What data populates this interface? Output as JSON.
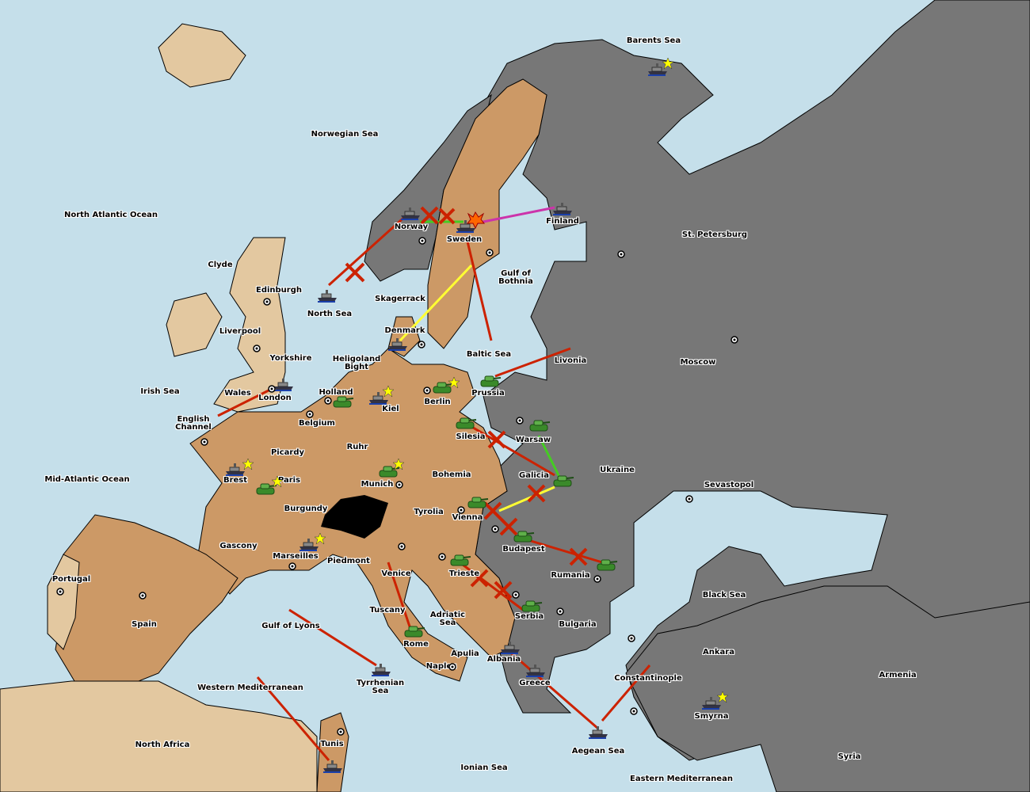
{
  "colors": {
    "sea": "#c5dfea",
    "player_land": "#cc9966",
    "neutral_land": "#e3c8a0",
    "enemy_land": "#777777",
    "order_failed": "#cc2200",
    "order_support": "#ffff33",
    "order_move": "#44cc22",
    "order_convoy": "#cc33aa"
  },
  "labels": {
    "barents": "Barents Sea",
    "norwegian": "Norwegian Sea",
    "nao": "North Atlantic Ocean",
    "clyde": "Clyde",
    "edinburgh": "Edinburgh",
    "north_sea": "North Sea",
    "norway": "Norway",
    "sweden": "Sweden",
    "finland": "Finland",
    "stp": "St. Petersburg",
    "bothnia": "Gulf of Bothnia",
    "skagerrack": "Skagerrack",
    "liverpool": "Liverpool",
    "denmark": "Denmark",
    "baltic": "Baltic Sea",
    "livonia": "Livonia",
    "moscow": "Moscow",
    "yorkshire": "Yorkshire",
    "heligoland": "Heligoland Bight",
    "irish": "Irish Sea",
    "wales": "Wales",
    "london": "London",
    "holland": "Holland",
    "kiel": "Kiel",
    "berlin": "Berlin",
    "prussia": "Prussia",
    "channel": "English Channel",
    "belgium": "Belgium",
    "silesia": "Silesia",
    "warsaw": "Warsaw",
    "ruhr": "Ruhr",
    "picardy": "Picardy",
    "ukraine": "Ukraine",
    "mao": "Mid-Atlantic Ocean",
    "brest": "Brest",
    "paris": "Paris",
    "munich": "Munich",
    "bohemia": "Bohemia",
    "galicia": "Galicia",
    "sevastopol": "Sevastopol",
    "burgundy": "Burgundy",
    "tyrolia": "Tyrolia",
    "vienna": "Vienna",
    "gascony": "Gascony",
    "budapest": "Budapest",
    "marseilles": "Marseilles",
    "piedmont": "Piedmont",
    "venice": "Venice",
    "trieste": "Trieste",
    "rumania": "Rumania",
    "portugal": "Portugal",
    "black_sea": "Black Sea",
    "tuscany": "Tuscany",
    "adriatic": "Adriatic Sea",
    "serbia": "Serbia",
    "spain": "Spain",
    "lyons": "Gulf of Lyons",
    "bulgaria": "Bulgaria",
    "rome": "Rome",
    "apulia": "Apulia",
    "ankara": "Ankara",
    "albania": "Albania",
    "naples": "Naples",
    "armenia": "Armenia",
    "constantinople": "Constantinople",
    "greece": "Greece",
    "tyrrhenian": "Tyrrhenian Sea",
    "wmed": "Western Mediterranean",
    "smyrna": "Smyrna",
    "north_africa": "North Africa",
    "tunis": "Tunis",
    "aegean": "Aegean Sea",
    "ionian": "Ionian Sea",
    "syria": "Syria",
    "emed": "Eastern Mediterranean"
  },
  "units": {
    "fleet_icon": "battleship-icon",
    "army_icon": "tank-icon",
    "supply_center_icon": "dot-circle-icon",
    "home_marker_icon": "star-icon",
    "dislodged_icon": "explosion-icon"
  }
}
